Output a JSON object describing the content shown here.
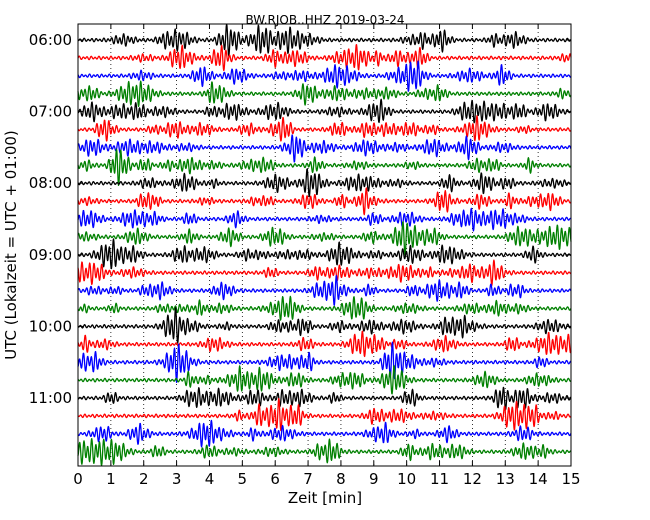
{
  "chart_data": {
    "type": "line",
    "title": "BW.RJOB..HHZ 2019-03-24",
    "xlabel": "Zeit  [min]",
    "ylabel": "UTC (Lokalzeit = UTC + 01:00)",
    "xlim": [
      0,
      15
    ],
    "x_ticks": [
      "0",
      "1",
      "2",
      "3",
      "4",
      "5",
      "6",
      "7",
      "8",
      "9",
      "10",
      "11",
      "12",
      "13",
      "14",
      "15"
    ],
    "y_tick_labels": [
      "06:00",
      "07:00",
      "08:00",
      "09:00",
      "10:00",
      "11:00"
    ],
    "traces_per_hour": 4,
    "trace_count": 24,
    "trace_colors": [
      "#000000",
      "#ff0000",
      "#0000ff",
      "#008000"
    ],
    "grid": "vertical dotted lines at each minute",
    "legend": "none"
  }
}
